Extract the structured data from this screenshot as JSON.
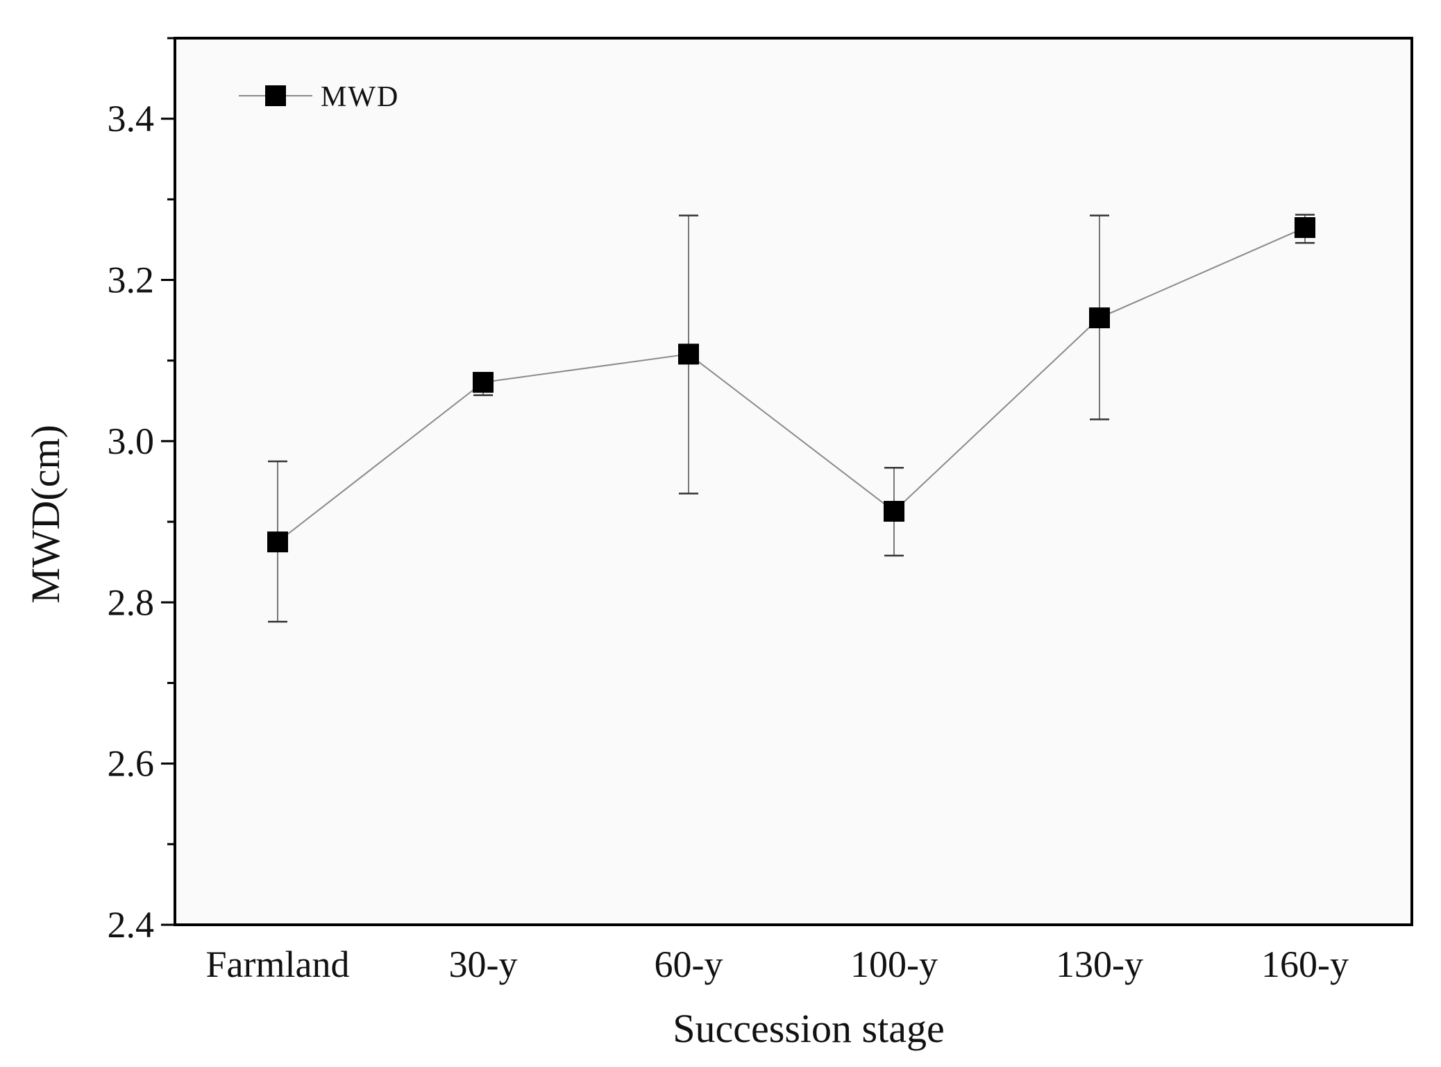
{
  "chart_data": {
    "type": "line",
    "title": "",
    "xlabel": "Succession stage",
    "ylabel": "MWD(cm)",
    "ylim": [
      2.4,
      3.5
    ],
    "yticks": [
      2.4,
      2.6,
      2.8,
      3.0,
      3.2,
      3.4
    ],
    "ytick_labels": [
      "2.4",
      "2.6",
      "2.8",
      "3.0",
      "3.2",
      "3.4"
    ],
    "categories": [
      "Farmland",
      "30-y",
      "60-y",
      "100-y",
      "130-y",
      "160-y"
    ],
    "series": [
      {
        "name": "MWD",
        "values": [
          2.875,
          3.073,
          3.108,
          2.913,
          3.153,
          3.265
        ],
        "err_low": [
          2.776,
          3.057,
          2.935,
          2.858,
          3.027,
          3.246
        ],
        "err_high": [
          2.975,
          3.083,
          3.28,
          2.967,
          3.28,
          3.281
        ]
      }
    ],
    "legend": {
      "position": "top-left",
      "entries": [
        "MWD"
      ]
    },
    "grid": false,
    "colors": {
      "line": "#8a8a8a",
      "marker": "#000000",
      "axis": "#000000",
      "error_bar": "#777777",
      "plot_bg": "#fafafa"
    }
  }
}
